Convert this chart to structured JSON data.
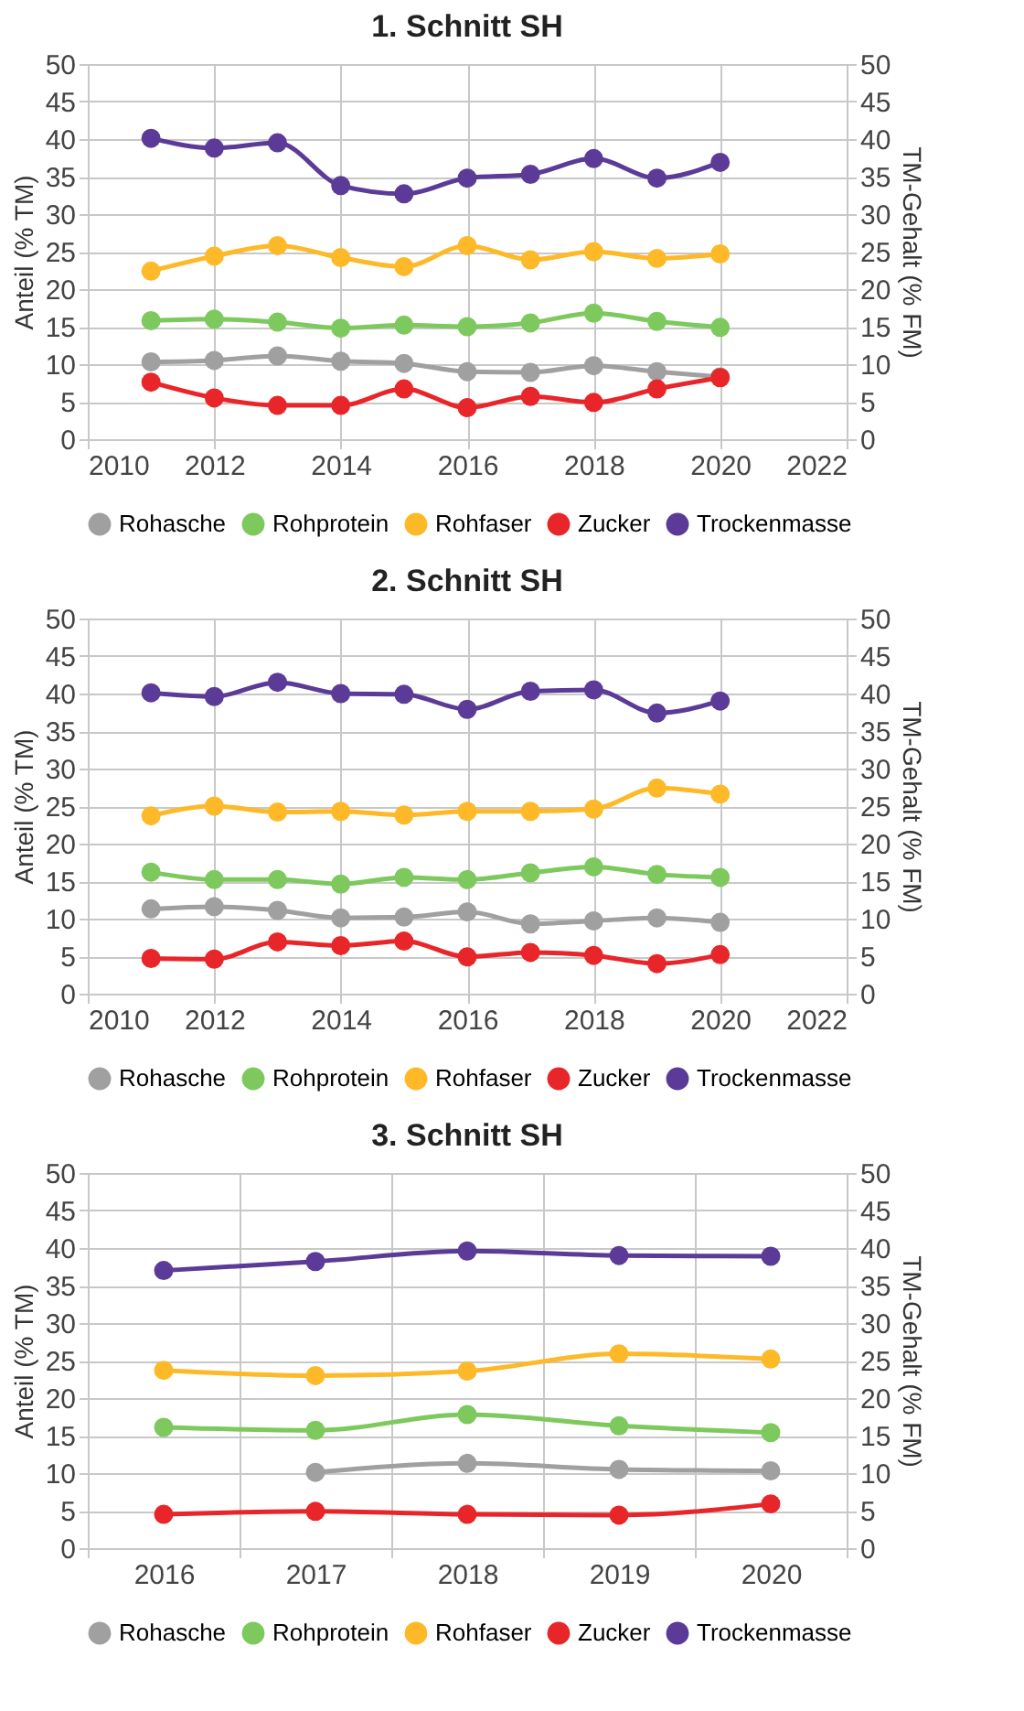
{
  "chart_data": [
    {
      "type": "line",
      "title": "1. Schnitt SH",
      "ylabel": "Anteil (% TM)",
      "y2label": "TM-Gehalt (% FM)",
      "x": [
        2011,
        2012,
        2013,
        2014,
        2015,
        2016,
        2017,
        2018,
        2019,
        2020
      ],
      "xlim": [
        2010,
        2022
      ],
      "xticks": [
        2010,
        2012,
        2014,
        2016,
        2018,
        2020,
        2022
      ],
      "ylim": [
        0,
        50
      ],
      "yticks": [
        0,
        5,
        10,
        15,
        20,
        25,
        30,
        35,
        40,
        45,
        50
      ],
      "y2lim": [
        0,
        50
      ],
      "y2ticks": [
        0,
        5,
        10,
        15,
        20,
        25,
        30,
        35,
        40,
        45,
        50
      ],
      "grid": true,
      "legend": "bottom",
      "marker": "circle",
      "line_style": "solid",
      "series": [
        {
          "name": "Rohasche",
          "color": "#a0a0a0",
          "values": [
            10.3,
            10.5,
            11.1,
            10.4,
            10.1,
            9.0,
            8.9,
            9.8,
            9.0,
            8.3
          ]
        },
        {
          "name": "Rohprotein",
          "color": "#7dc95e",
          "values": [
            15.8,
            16.0,
            15.6,
            14.8,
            15.2,
            15.0,
            15.5,
            16.8,
            15.7,
            14.9
          ]
        },
        {
          "name": "Rohfaser",
          "color": "#fdb927",
          "values": [
            22.4,
            24.4,
            25.8,
            24.2,
            23.0,
            25.8,
            23.9,
            25.0,
            24.1,
            24.7
          ]
        },
        {
          "name": "Zucker",
          "color": "#e8262a",
          "values": [
            7.6,
            5.5,
            4.5,
            4.5,
            6.7,
            4.2,
            5.7,
            4.9,
            6.7,
            8.2
          ]
        },
        {
          "name": "Trockenmasse",
          "color": "#5b3b97",
          "axis": "y2",
          "values": [
            40.1,
            38.8,
            39.5,
            33.8,
            32.7,
            34.8,
            35.3,
            37.4,
            34.8,
            36.9
          ]
        }
      ]
    },
    {
      "type": "line",
      "title": "2. Schnitt SH",
      "ylabel": "Anteil (% TM)",
      "y2label": "TM-Gehalt (% FM)",
      "x": [
        2011,
        2012,
        2013,
        2014,
        2015,
        2016,
        2017,
        2018,
        2019,
        2020
      ],
      "xlim": [
        2010,
        2022
      ],
      "xticks": [
        2010,
        2012,
        2014,
        2016,
        2018,
        2020,
        2022
      ],
      "ylim": [
        0,
        50
      ],
      "yticks": [
        0,
        5,
        10,
        15,
        20,
        25,
        30,
        35,
        40,
        45,
        50
      ],
      "y2lim": [
        0,
        50
      ],
      "y2ticks": [
        0,
        5,
        10,
        15,
        20,
        25,
        30,
        35,
        40,
        45,
        50
      ],
      "grid": true,
      "legend": "bottom",
      "marker": "circle",
      "line_style": "solid",
      "series": [
        {
          "name": "Rohasche",
          "color": "#a0a0a0",
          "values": [
            11.3,
            11.6,
            11.1,
            10.1,
            10.2,
            10.9,
            9.3,
            9.7,
            10.1,
            9.5
          ]
        },
        {
          "name": "Rohprotein",
          "color": "#7dc95e",
          "values": [
            16.2,
            15.2,
            15.2,
            14.6,
            15.5,
            15.2,
            16.1,
            16.9,
            15.9,
            15.5
          ]
        },
        {
          "name": "Rohfaser",
          "color": "#fdb927",
          "values": [
            23.7,
            25.0,
            24.2,
            24.3,
            23.8,
            24.3,
            24.3,
            24.6,
            27.4,
            26.6
          ]
        },
        {
          "name": "Zucker",
          "color": "#e8262a",
          "values": [
            4.7,
            4.6,
            6.9,
            6.4,
            7.0,
            4.9,
            5.5,
            5.1,
            4.0,
            5.2
          ]
        },
        {
          "name": "Trockenmasse",
          "color": "#5b3b97",
          "axis": "y2",
          "values": [
            40.1,
            39.6,
            41.5,
            40.0,
            39.9,
            37.9,
            40.3,
            40.5,
            37.4,
            39.0
          ]
        }
      ]
    },
    {
      "type": "line",
      "title": "3. Schnitt SH",
      "ylabel": "Anteil (% TM)",
      "y2label": "TM-Gehalt (% FM)",
      "categories": [
        "2016",
        "2017",
        "2018",
        "2019",
        "2020"
      ],
      "ylim": [
        0,
        50
      ],
      "yticks": [
        0,
        5,
        10,
        15,
        20,
        25,
        30,
        35,
        40,
        45,
        50
      ],
      "y2lim": [
        0,
        50
      ],
      "y2ticks": [
        0,
        5,
        10,
        15,
        20,
        25,
        30,
        35,
        40,
        45,
        50
      ],
      "grid": true,
      "legend": "bottom",
      "marker": "circle",
      "line_style": "solid",
      "series": [
        {
          "name": "Rohasche",
          "color": "#a0a0a0",
          "values": [
            null,
            10.1,
            11.3,
            10.5,
            10.3
          ]
        },
        {
          "name": "Rohprotein",
          "color": "#7dc95e",
          "values": [
            16.1,
            15.7,
            17.8,
            16.3,
            15.4
          ]
        },
        {
          "name": "Rohfaser",
          "color": "#fdb927",
          "values": [
            23.7,
            23.0,
            23.6,
            25.9,
            25.2
          ]
        },
        {
          "name": "Zucker",
          "color": "#e8262a",
          "values": [
            4.5,
            4.9,
            4.5,
            4.4,
            5.9
          ]
        },
        {
          "name": "Trockenmasse",
          "color": "#5b3b97",
          "axis": "y2",
          "values": [
            37.0,
            38.2,
            39.6,
            39.0,
            38.9
          ]
        }
      ]
    }
  ]
}
